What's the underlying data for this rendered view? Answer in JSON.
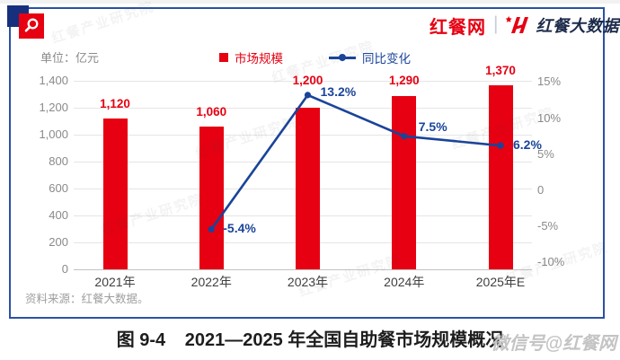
{
  "header": {
    "unit_label": "单位：亿元",
    "brand_site": "红餐网",
    "brand_divider": "|",
    "brand_data": "红餐大数据"
  },
  "icons": {
    "magnifier": "search-icon",
    "brand_mark": "h-star-icon",
    "legend_bar": "square-swatch-icon",
    "legend_line": "line-dot-swatch-icon",
    "corner": "corner-square-accent"
  },
  "colors": {
    "bar_red": "#E60012",
    "line_blue": "#1A4499",
    "card_border_blue": "#2B51A5",
    "corner_navy": "#17307E",
    "axis_grey": "#8A8A8A",
    "brand_navy": "#1C2B4A"
  },
  "chart_data": {
    "type": "bar+line",
    "categories": [
      "2021年",
      "2022年",
      "2023年",
      "2024年",
      "2025年E"
    ],
    "series": [
      {
        "name": "市场规模",
        "type": "bar",
        "unit": "亿元",
        "color": "#E60012",
        "values": [
          1120,
          1060,
          1200,
          1290,
          1370
        ],
        "labels": [
          "1,120",
          "1,060",
          "1,200",
          "1,290",
          "1,370"
        ]
      },
      {
        "name": "同比变化",
        "type": "line",
        "unit": "%",
        "color": "#1A4499",
        "values": [
          null,
          -5.4,
          13.2,
          7.5,
          6.2
        ],
        "labels": [
          null,
          "-5.4%",
          "13.2%",
          "7.5%",
          "6.2%"
        ]
      }
    ],
    "left_axis": {
      "range": [
        0,
        1400
      ],
      "ticks": [
        0,
        200,
        400,
        600,
        800,
        1000,
        1200,
        1400
      ],
      "tick_labels": [
        "0",
        "200",
        "400",
        "600",
        "800",
        "1,000",
        "1,200",
        "1,400"
      ]
    },
    "right_axis": {
      "range": [
        -10,
        15
      ],
      "ticks": [
        15,
        10,
        5,
        0,
        -5,
        -10
      ],
      "tick_labels": [
        "15%",
        "10%",
        "5%",
        "0",
        "-5%",
        "-10%"
      ]
    },
    "grid": true,
    "legend_position": "top"
  },
  "source_note": "资料来源：红餐大数据。",
  "caption": {
    "figure_no": "图 9-4",
    "title": "2021—2025 年全国自助餐市场规模概况"
  },
  "watermarks": {
    "diagonal_text": "红餐产业研究院",
    "wechat": "微信号@红餐网"
  }
}
